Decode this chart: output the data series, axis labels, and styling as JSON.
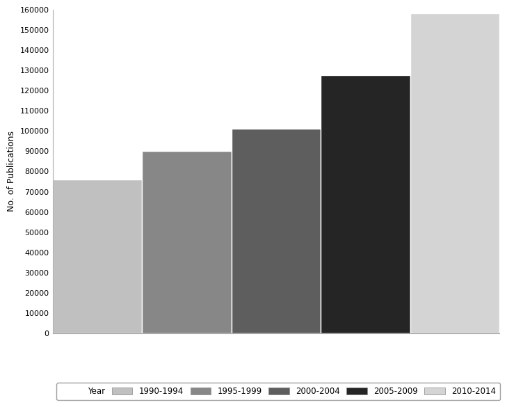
{
  "categories": [
    "1990-1994",
    "1995-1999",
    "2000-2004",
    "2005-2009",
    "2010-2014"
  ],
  "values": [
    76000,
    90000,
    101000,
    127500,
    158000
  ],
  "bar_colors": [
    "#c0c0c0",
    "#878787",
    "#5e5e5e",
    "#252525",
    "#d4d4d4"
  ],
  "ylabel": "No. of Publications",
  "ylim": [
    0,
    160000
  ],
  "yticks": [
    0,
    10000,
    20000,
    30000,
    40000,
    50000,
    60000,
    70000,
    80000,
    90000,
    100000,
    110000,
    120000,
    130000,
    140000,
    150000,
    160000
  ],
  "legend_label": "Year",
  "background_color": "#ffffff",
  "bar_edge_color": "#ffffff"
}
